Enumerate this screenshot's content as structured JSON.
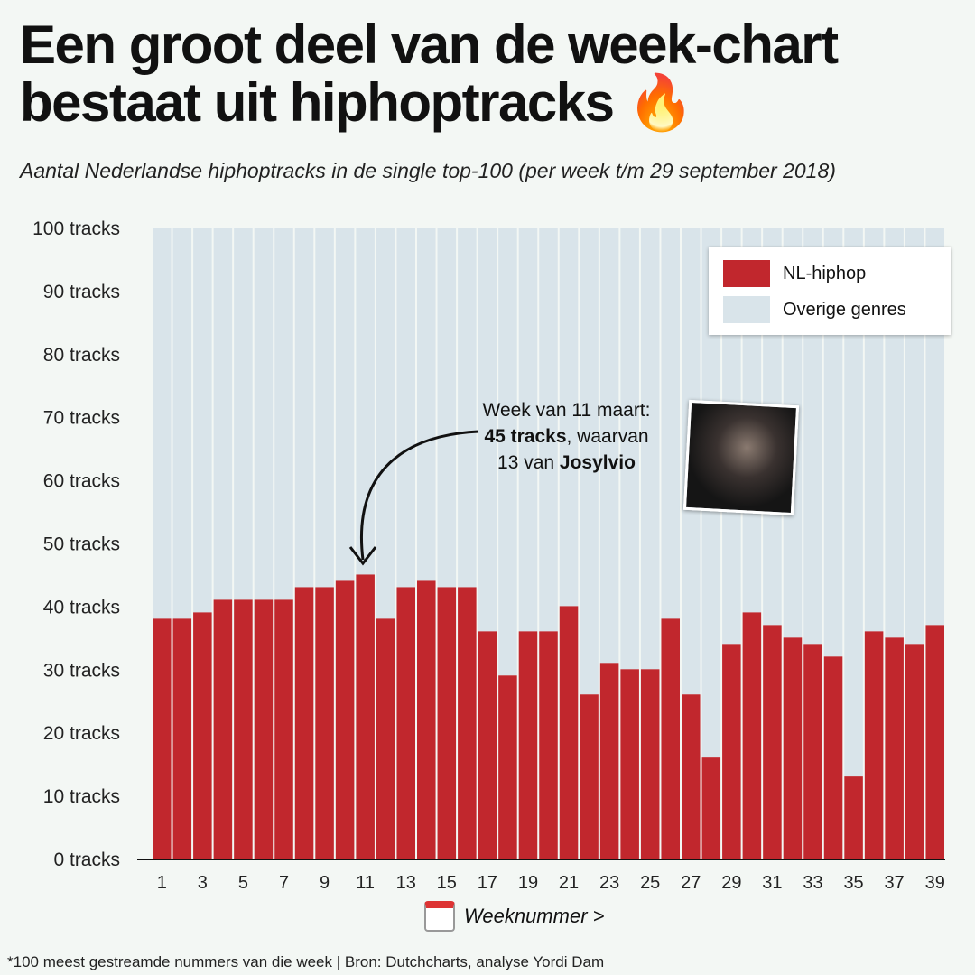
{
  "title": "Een groot deel van de week-chart bestaat uit hiphoptracks",
  "title_emoji": "🔥",
  "subtitle": "Aantal Nederlandse hiphoptracks in de single top-100 (per week t/m 29 september 2018)",
  "footer": "*100 meest gestreamde nummers van die week | Bron: Dutchcharts, analyse Yordi Dam",
  "annotation": {
    "line1": "Week van 11 maart:",
    "bold1": "45 tracks",
    "rest2": ", waarvan",
    "line3a": "13 van ",
    "bold3": "Josylvio"
  },
  "colors": {
    "hiphop": "#c1272d",
    "other": "#d9e4ea"
  },
  "chart_data": {
    "type": "bar",
    "stacked": true,
    "title": "Een groot deel van de week-chart bestaat uit hiphoptracks",
    "xlabel": "Weeknummer >",
    "ylabel": "",
    "ylim": [
      0,
      100
    ],
    "yticks": [
      "0 tracks",
      "10 tracks",
      "20 tracks",
      "30 tracks",
      "40 tracks",
      "50 tracks",
      "60 tracks",
      "70 tracks",
      "80 tracks",
      "90 tracks",
      "100 tracks"
    ],
    "categories": [
      1,
      2,
      3,
      4,
      5,
      6,
      7,
      8,
      9,
      10,
      11,
      12,
      13,
      14,
      15,
      16,
      17,
      18,
      19,
      20,
      21,
      22,
      23,
      24,
      25,
      26,
      27,
      28,
      29,
      30,
      31,
      32,
      33,
      34,
      35,
      36,
      37,
      38,
      39
    ],
    "series": [
      {
        "name": "NL-hiphop",
        "values": [
          38,
          38,
          39,
          41,
          41,
          41,
          41,
          43,
          43,
          44,
          45,
          38,
          43,
          44,
          43,
          43,
          36,
          29,
          36,
          36,
          40,
          26,
          31,
          30,
          30,
          38,
          26,
          16,
          34,
          39,
          37,
          35,
          34,
          32,
          13,
          36,
          35,
          34,
          37
        ]
      },
      {
        "name": "Overige genres",
        "values": [
          62,
          62,
          61,
          59,
          59,
          59,
          59,
          57,
          57,
          56,
          55,
          62,
          57,
          56,
          57,
          57,
          64,
          71,
          64,
          64,
          60,
          74,
          69,
          70,
          70,
          62,
          74,
          84,
          66,
          61,
          63,
          65,
          66,
          68,
          87,
          64,
          65,
          66,
          63
        ]
      }
    ],
    "legend": "top-right"
  }
}
